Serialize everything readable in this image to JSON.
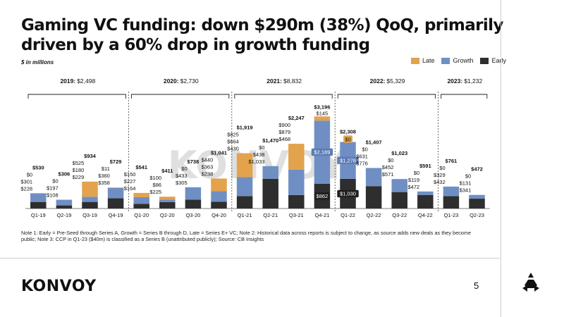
{
  "slide": {
    "title": "Gaming VC funding: down $290m (38%) QoQ, primarily driven by a 60% drop in growth funding",
    "units": "$ in millions",
    "notes": "Note 1: Early = Pre-Seed through Series A, Growth = Series B through D, Late = Series E+ VC; Note 2: Historical data across reports is subject to change, as source adds new deals as they become public; Note 3: CCP in Q1-23 ($40m) is classified as a Series B (unattributed publicly); Source: CB Insights",
    "logo_text": "KONVOY",
    "watermark_text": "KONVOY",
    "page_number": "5"
  },
  "colors": {
    "early": "#2e2e2e",
    "growth": "#6f8fc4",
    "late": "#e3a24c",
    "text": "#111111"
  },
  "chart_data": {
    "type": "bar",
    "stacked": true,
    "categories": [
      "Q1-19",
      "Q2-19",
      "Q3-19",
      "Q4-19",
      "Q1-20",
      "Q2-20",
      "Q3-20",
      "Q4-20",
      "Q1-21",
      "Q2-21",
      "Q3-21",
      "Q4-21",
      "Q1-22",
      "Q2-22",
      "Q3-22",
      "Q4-22",
      "Q1-23",
      "Q2-23"
    ],
    "series": [
      {
        "name": "Early",
        "color_key": "early",
        "values": [
          228,
          108,
          229,
          358,
          164,
          225,
          305,
          238,
          430,
          1033,
          468,
          862,
          1030,
          776,
          571,
          472,
          432,
          341
        ],
        "labels": [
          "$228",
          "$108",
          "$229",
          "$358",
          "$164",
          "$225",
          "$305",
          "$238",
          "$430",
          "$1,033",
          "$468",
          "$862",
          "$1,030",
          "$776",
          "$571",
          "$472",
          "$432",
          "$341"
        ]
      },
      {
        "name": "Growth",
        "color_key": "growth",
        "values": [
          301,
          197,
          180,
          360,
          227,
          86,
          433,
          363,
          664,
          438,
          879,
          2189,
          1278,
          631,
          452,
          119,
          329,
          131
        ],
        "labels": [
          "$301",
          "$197",
          "$180",
          "$360",
          "$227",
          "$86",
          "$433",
          "$363",
          "$664",
          "$438",
          "$879",
          "$2,189",
          "$1,278",
          "$631",
          "$452",
          "$119",
          "$329",
          "$131"
        ]
      },
      {
        "name": "Late",
        "color_key": "late",
        "values": [
          0,
          0,
          525,
          11,
          150,
          100,
          0,
          440,
          825,
          0,
          900,
          145,
          0,
          0,
          0,
          0,
          0,
          0
        ],
        "labels": [
          "$0",
          "$0",
          "$525",
          "$11",
          "$150",
          "$100",
          "$0",
          "$440",
          "$825",
          "$0",
          "$900",
          "$145",
          "$0",
          "$0",
          "$0",
          "$0",
          "$0",
          "$0"
        ]
      }
    ],
    "totals": [
      "$530",
      "$306",
      "$934",
      "$729",
      "$541",
      "$411",
      "$738",
      "$1,041",
      "$1,919",
      "$1,470",
      "$2,247",
      "$3,196",
      "$2,308",
      "$1,407",
      "$1,023",
      "$591",
      "$761",
      "$472"
    ],
    "year_groups": [
      {
        "year_label": "2019:",
        "total_label": "$2,498",
        "start": 0,
        "end": 3
      },
      {
        "year_label": "2020:",
        "total_label": "$2,730",
        "start": 4,
        "end": 7
      },
      {
        "year_label": "2021:",
        "total_label": "$8,832",
        "start": 8,
        "end": 11
      },
      {
        "year_label": "2022:",
        "total_label": "$5,329",
        "start": 12,
        "end": 15
      },
      {
        "year_label": "2023:",
        "total_label": "$1,232",
        "start": 16,
        "end": 17
      }
    ],
    "legend": [
      "Late",
      "Growth",
      "Early"
    ],
    "ylim": [
      0,
      3300
    ],
    "grid": false
  }
}
